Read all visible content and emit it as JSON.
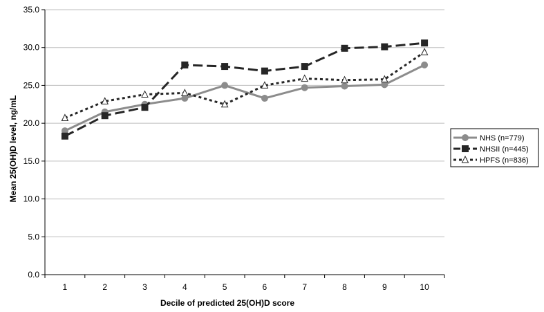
{
  "chart_data": {
    "type": "line",
    "title": "",
    "xlabel": "Decile of predicted 25(OH)D score",
    "ylabel": "Mean 25(OH)D level, ng/mL",
    "categories": [
      "1",
      "2",
      "3",
      "4",
      "5",
      "6",
      "7",
      "8",
      "9",
      "10"
    ],
    "ylim": [
      0,
      35
    ],
    "yticks": [
      "0.0",
      "5.0",
      "10.0",
      "15.0",
      "20.0",
      "25.0",
      "30.0",
      "35.0"
    ],
    "grid": true,
    "legend_position": "right",
    "series": [
      {
        "name": "NHS (n=779)",
        "values": [
          19.0,
          21.5,
          22.5,
          23.3,
          25.0,
          23.3,
          24.7,
          24.9,
          25.1,
          27.7
        ],
        "color": "#8c8c8c",
        "line_style": "solid",
        "marker": "circle"
      },
      {
        "name": "NHSII (n=445)",
        "values": [
          18.3,
          21.0,
          22.1,
          27.7,
          27.5,
          26.9,
          27.5,
          29.9,
          30.1,
          30.6
        ],
        "color": "#262626",
        "line_style": "dashed",
        "marker": "square"
      },
      {
        "name": "HPFS (n=836)",
        "values": [
          20.7,
          22.9,
          23.8,
          24.0,
          22.5,
          25.0,
          25.9,
          25.7,
          25.8,
          29.4
        ],
        "color": "#262626",
        "line_style": "dotted",
        "marker": "triangle-open"
      }
    ]
  }
}
